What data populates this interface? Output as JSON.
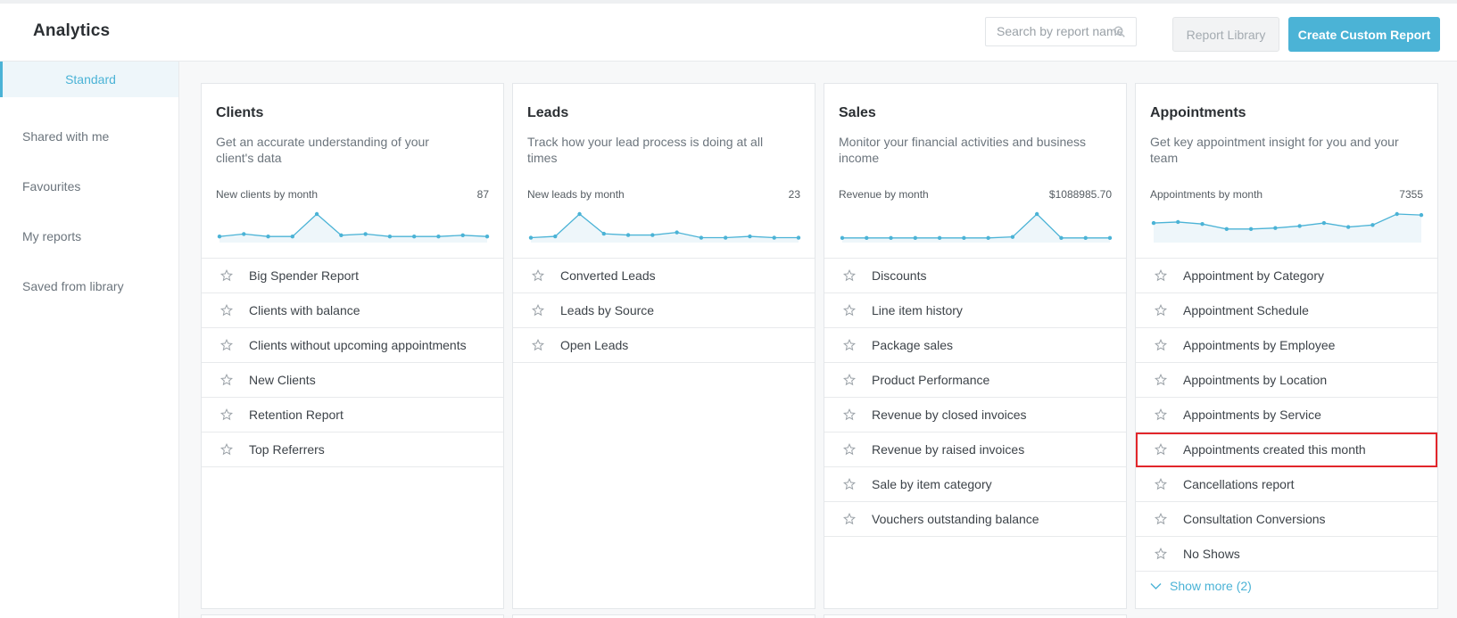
{
  "header": {
    "title": "Analytics",
    "search_placeholder": "Search by report name",
    "library_label": "Report Library",
    "create_label": "Create Custom Report"
  },
  "sidebar": {
    "items": [
      {
        "label": "Standard",
        "active": true
      },
      {
        "label": "Shared with me"
      },
      {
        "label": "Favourites"
      },
      {
        "label": "My reports"
      },
      {
        "label": "Saved from library"
      }
    ]
  },
  "colors": {
    "accent": "#4bb3d6",
    "highlight": "#e2262b"
  },
  "cards": [
    {
      "title": "Clients",
      "description": "Get an accurate understanding of your client's data",
      "chart_label": "New clients by month",
      "chart_total": "87",
      "spark": [
        2,
        4,
        2,
        2,
        20,
        3,
        4,
        2,
        2,
        2,
        3,
        2
      ],
      "reports": [
        "Big Spender Report",
        "Clients with balance",
        "Clients without upcoming appointments",
        "New Clients",
        "Retention Report",
        "Top Referrers"
      ]
    },
    {
      "title": "Leads",
      "description": "Track how your lead process is doing at all times",
      "chart_label": "New leads by month",
      "chart_total": "23",
      "spark": [
        1,
        2,
        19,
        4,
        3,
        3,
        5,
        1,
        1,
        2,
        1,
        1
      ],
      "reports": [
        "Converted Leads",
        "Leads by Source",
        "Open Leads"
      ]
    },
    {
      "title": "Sales",
      "description": "Monitor your financial activities and business income",
      "chart_label": "Revenue by month",
      "chart_total": "$1088985.70",
      "spark": [
        1,
        1,
        1,
        1,
        1,
        1,
        1,
        2,
        24,
        1,
        1,
        1
      ],
      "reports": [
        "Discounts",
        "Line item history",
        "Package sales",
        "Product Performance",
        "Revenue by closed invoices",
        "Revenue by raised invoices",
        "Sale by item category",
        "Vouchers outstanding balance"
      ]
    },
    {
      "title": "Appointments",
      "description": "Get key appointment insight for you and your team",
      "chart_label": "Appointments by month",
      "chart_total": "7355",
      "spark": [
        16,
        17,
        15,
        10,
        10,
        11,
        13,
        16,
        12,
        14,
        25,
        24
      ],
      "reports": [
        "Appointment by Category",
        "Appointment Schedule",
        "Appointments by Employee",
        "Appointments by Location",
        "Appointments by Service",
        "Appointments created this month",
        "Cancellations report",
        "Consultation Conversions",
        "No Shows"
      ],
      "highlight_index": 5,
      "show_more": "Show more (2)"
    }
  ]
}
